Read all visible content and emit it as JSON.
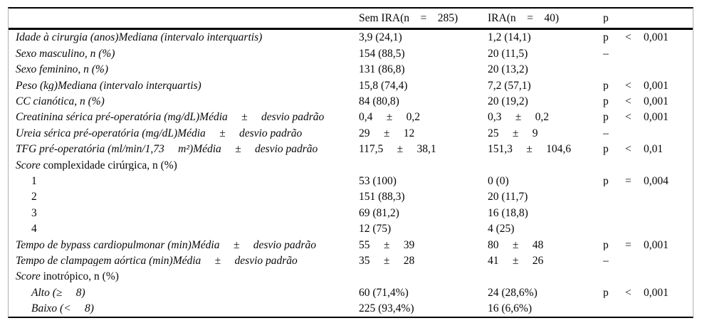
{
  "table": {
    "header": {
      "row_label": "",
      "sem_ira": "Sem IRA(n    =    285)",
      "ira": "IRA(n    =    40)",
      "p": "p"
    },
    "rows": [
      {
        "label_i": "Idade à cirurgia (anos)Mediana (intervalo interquartis)",
        "label_r": "",
        "sem": "3,9 (24,1)",
        "ira": "1,2 (14,1)",
        "p": "p",
        "op": "<",
        "pval": "0,001"
      },
      {
        "label_i": "Sexo masculino, n (%)",
        "label_r": "",
        "sem": "154 (88,5)",
        "ira": "20 (11,5)",
        "p": "–",
        "op": "",
        "pval": ""
      },
      {
        "label_i": "Sexo feminino, n (%)",
        "label_r": "",
        "sem": "131 (86,8)",
        "ira": "20 (13,2)",
        "p": "",
        "op": "",
        "pval": ""
      },
      {
        "label_i": "Peso (kg)Mediana (intervalo interquartis)",
        "label_r": "",
        "sem": "15,8 (74,4)",
        "ira": "7,2 (57,1)",
        "p": "p",
        "op": "<",
        "pval": "0,001"
      },
      {
        "label_i": "CC cianótica, n (%)",
        "label_r": "",
        "sem": "84 (80,8)",
        "ira": "20 (19,2)",
        "p": "p",
        "op": "<",
        "pval": "0,001"
      },
      {
        "label_i": "Creatinina sérica pré-operatória (mg/dL)Média     ±     desvio padrão",
        "label_r": "",
        "sem": "0,4     ±     0,2",
        "ira": "0,3     ±     0,2",
        "p": "p",
        "op": "<",
        "pval": "0,001"
      },
      {
        "label_i": "Ureia sérica pré-operatória (mg/dL)Média     ±     desvio padrão",
        "label_r": "",
        "sem": "29     ±     12",
        "ira": "25     ±     9",
        "p": "–",
        "op": "",
        "pval": ""
      },
      {
        "label_i": "TFG pré-operatória (ml/min/1,73     m²)Média     ±     desvio padrão",
        "label_r": "",
        "sem": "117,5     ±     38,1",
        "ira": "151,3     ±     104,6",
        "p": "p",
        "op": "<",
        "pval": "0,01"
      },
      {
        "label_i": "Score",
        "label_r": " complexidade cirúrgica, n (%)",
        "sem": "",
        "ira": "",
        "p": "",
        "op": "",
        "pval": ""
      },
      {
        "label_i": "",
        "label_r": "1",
        "sem": "53 (100)",
        "ira": "0 (0)",
        "p": "p",
        "op": "=",
        "pval": "0,004"
      },
      {
        "label_i": "",
        "label_r": "2",
        "sem": "151 (88,3)",
        "ira": "20 (11,7)",
        "p": "",
        "op": "",
        "pval": ""
      },
      {
        "label_i": "",
        "label_r": "3",
        "sem": "69 (81,2)",
        "ira": "16 (18,8)",
        "p": "",
        "op": "",
        "pval": ""
      },
      {
        "label_i": "",
        "label_r": "4",
        "sem": "12 (75)",
        "ira": "4 (25)",
        "p": "",
        "op": "",
        "pval": ""
      },
      {
        "label_i": "Tempo de bypass cardiopulmonar (min)Média     ±     desvio padrão",
        "label_r": "",
        "sem": "55     ±     39",
        "ira": "80     ±     48",
        "p": "p",
        "op": "=",
        "pval": "0,001"
      },
      {
        "label_i": "Tempo de clampagem aórtica (min)Média     ±     desvio padrão",
        "label_r": "",
        "sem": "35     ±     28",
        "ira": "41     ±     26",
        "p": "–",
        "op": "",
        "pval": ""
      },
      {
        "label_i": "Score",
        "label_r": " inotrópico, n (%)",
        "sem": "",
        "ira": "",
        "p": "",
        "op": "",
        "pval": ""
      },
      {
        "label_i": "Alto (≥     8)",
        "label_r": "",
        "sem": "60 (71,4%)",
        "ira": "24 (28,6%)",
        "p": "p",
        "op": "<",
        "pval": "0,001"
      },
      {
        "label_i": "Baixo (<     8)",
        "label_r": "",
        "sem": "225 (93,4%)",
        "ira": "16 (6,6%)",
        "p": "",
        "op": "",
        "pval": ""
      }
    ]
  }
}
